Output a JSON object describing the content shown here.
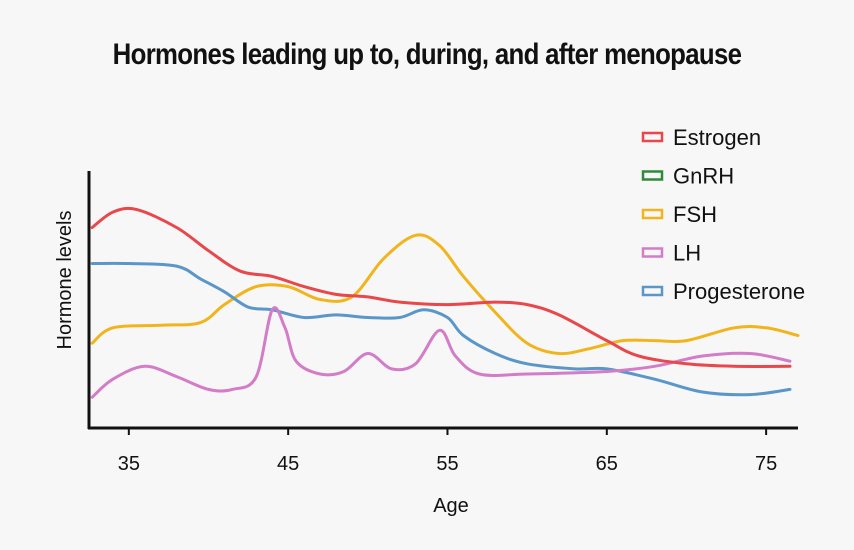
{
  "chart_data": {
    "type": "line",
    "title": "Hormones leading up to, during, and after menopause",
    "xlabel": "Age",
    "ylabel": "Hormone levels",
    "xlim": [
      32.5,
      77
    ],
    "ylim": [
      0,
      10
    ],
    "xticks": [
      35,
      45,
      55,
      65,
      75
    ],
    "grid": false,
    "legend_position": "top-right",
    "series": [
      {
        "name": "Estrogen",
        "color": "#e8474c",
        "points": [
          [
            32.7,
            7.8
          ],
          [
            34,
            8.4
          ],
          [
            35.5,
            8.5
          ],
          [
            38,
            7.8
          ],
          [
            40,
            6.9
          ],
          [
            42,
            6.1
          ],
          [
            44,
            5.9
          ],
          [
            46,
            5.5
          ],
          [
            48,
            5.2
          ],
          [
            50,
            5.1
          ],
          [
            52,
            4.9
          ],
          [
            55,
            4.8
          ],
          [
            58,
            4.9
          ],
          [
            60,
            4.8
          ],
          [
            62,
            4.4
          ],
          [
            65,
            3.4
          ],
          [
            67,
            2.8
          ],
          [
            70,
            2.5
          ],
          [
            73,
            2.4
          ],
          [
            76.5,
            2.4
          ]
        ]
      },
      {
        "name": "GnRH",
        "color": "#2f8a3a",
        "points": []
      },
      {
        "name": "FSH",
        "color": "#f1b41c",
        "points": [
          [
            32.7,
            3.3
          ],
          [
            34,
            3.9
          ],
          [
            37,
            4.0
          ],
          [
            39.5,
            4.1
          ],
          [
            41,
            4.8
          ],
          [
            43,
            5.5
          ],
          [
            45,
            5.5
          ],
          [
            47,
            5.0
          ],
          [
            49,
            5.1
          ],
          [
            51,
            6.6
          ],
          [
            53,
            7.5
          ],
          [
            54.5,
            7.1
          ],
          [
            56,
            5.9
          ],
          [
            58,
            4.5
          ],
          [
            60,
            3.3
          ],
          [
            62,
            2.9
          ],
          [
            64,
            3.1
          ],
          [
            66,
            3.4
          ],
          [
            68,
            3.4
          ],
          [
            70,
            3.4
          ],
          [
            73,
            3.9
          ],
          [
            75,
            3.9
          ],
          [
            77,
            3.6
          ]
        ]
      },
      {
        "name": "LH",
        "color": "#d37cc8",
        "points": [
          [
            32.7,
            1.2
          ],
          [
            34,
            1.9
          ],
          [
            36,
            2.4
          ],
          [
            38,
            2.0
          ],
          [
            40,
            1.5
          ],
          [
            41.5,
            1.5
          ],
          [
            43,
            2.0
          ],
          [
            44,
            4.6
          ],
          [
            44.8,
            3.9
          ],
          [
            45.5,
            2.6
          ],
          [
            47,
            2.1
          ],
          [
            48.5,
            2.2
          ],
          [
            50,
            2.9
          ],
          [
            51.5,
            2.3
          ],
          [
            53,
            2.5
          ],
          [
            54.5,
            3.8
          ],
          [
            55.5,
            2.8
          ],
          [
            57,
            2.1
          ],
          [
            60,
            2.1
          ],
          [
            65,
            2.2
          ],
          [
            68,
            2.4
          ],
          [
            71,
            2.8
          ],
          [
            74,
            2.9
          ],
          [
            76.5,
            2.6
          ]
        ]
      },
      {
        "name": "Progesterone",
        "color": "#5a97c8",
        "points": [
          [
            32.7,
            6.4
          ],
          [
            35,
            6.4
          ],
          [
            38,
            6.3
          ],
          [
            39.5,
            5.8
          ],
          [
            41,
            5.3
          ],
          [
            42.5,
            4.7
          ],
          [
            44,
            4.6
          ],
          [
            46,
            4.3
          ],
          [
            48,
            4.4
          ],
          [
            50,
            4.3
          ],
          [
            52,
            4.3
          ],
          [
            53.5,
            4.6
          ],
          [
            55,
            4.3
          ],
          [
            56,
            3.6
          ],
          [
            58,
            2.9
          ],
          [
            60,
            2.5
          ],
          [
            63,
            2.3
          ],
          [
            65,
            2.3
          ],
          [
            68,
            1.9
          ],
          [
            71,
            1.4
          ],
          [
            74,
            1.3
          ],
          [
            76.5,
            1.5
          ]
        ]
      }
    ]
  }
}
